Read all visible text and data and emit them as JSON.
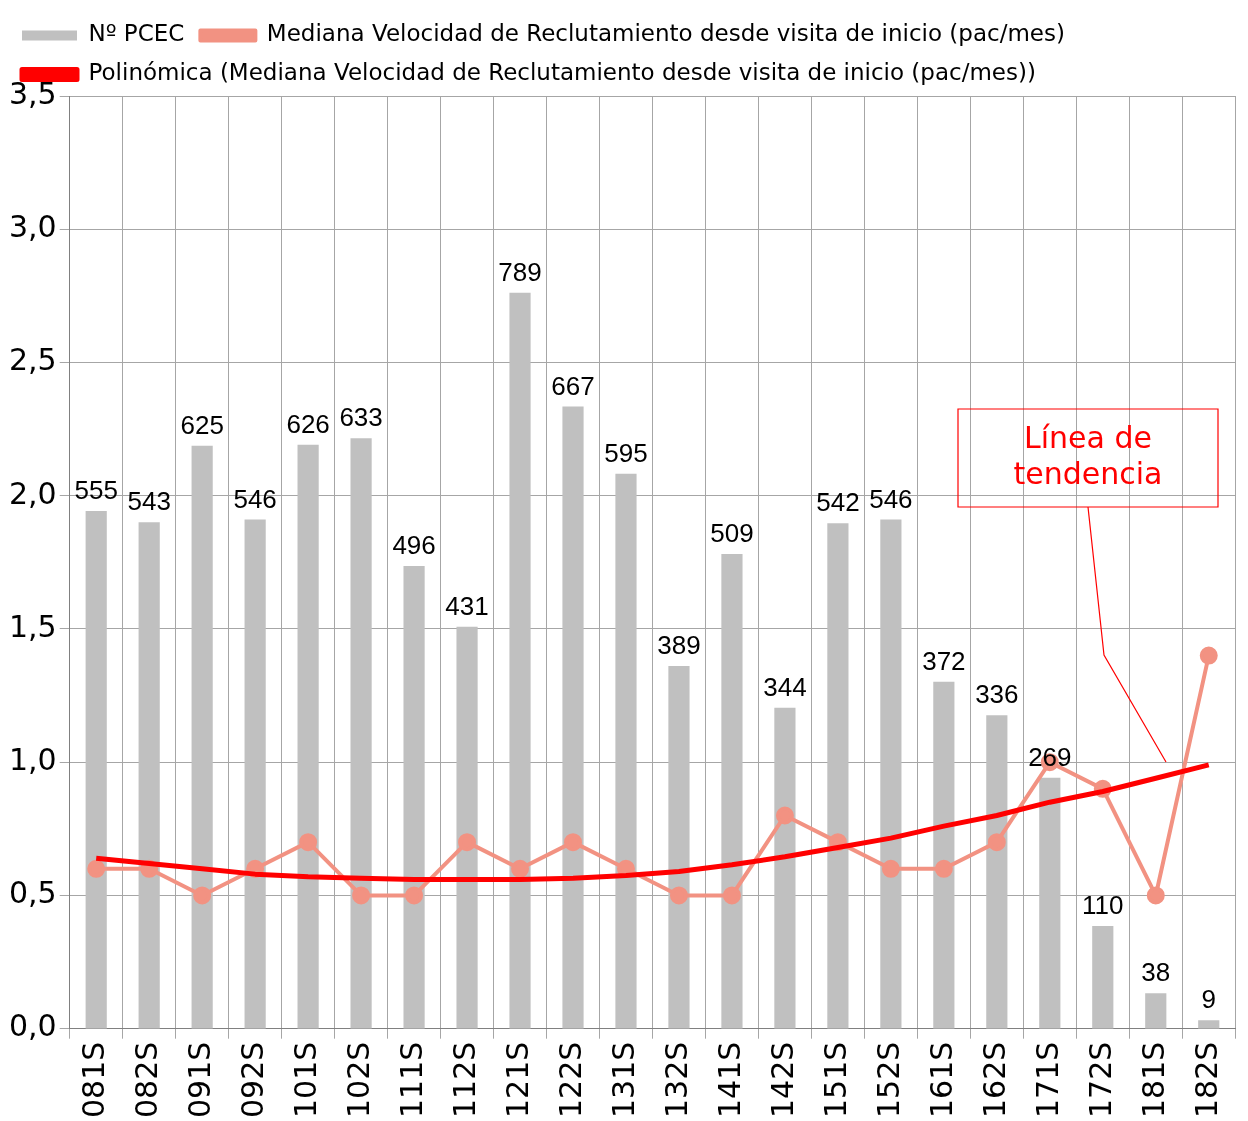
{
  "chart_data": {
    "type": "bar",
    "categories": [
      "081S",
      "082S",
      "091S",
      "092S",
      "101S",
      "102S",
      "111S",
      "112S",
      "121S",
      "122S",
      "131S",
      "132S",
      "141S",
      "142S",
      "151S",
      "152S",
      "161S",
      "162S",
      "171S",
      "172S",
      "181S",
      "182S"
    ],
    "series": [
      {
        "name": "Nº PCEC",
        "axis": "y2",
        "color": "#c0c0c0",
        "data_labels": true,
        "values": [
          555,
          543,
          625,
          546,
          626,
          633,
          496,
          431,
          789,
          667,
          595,
          389,
          509,
          344,
          542,
          546,
          372,
          336,
          269,
          110,
          38,
          9
        ]
      },
      {
        "name": "Mediana Velocidad de Reclutamiento desde visita de inicio (pac/mes)",
        "type": "line",
        "color": "#f29282",
        "marker": "circle",
        "values": [
          0.6,
          0.6,
          0.5,
          0.6,
          0.7,
          0.5,
          0.5,
          0.7,
          0.6,
          0.7,
          0.6,
          0.5,
          0.5,
          0.8,
          0.7,
          0.6,
          0.6,
          0.7,
          1.0,
          0.9,
          0.5,
          1.4
        ]
      },
      {
        "name": "Polinómica (Mediana Velocidad de Reclutamiento desde visita de inicio (pac/mes))",
        "type": "line",
        "color": "#ff0000",
        "marker": "none",
        "values": [
          0.64,
          0.62,
          0.6,
          0.58,
          0.57,
          0.565,
          0.56,
          0.56,
          0.56,
          0.565,
          0.575,
          0.59,
          0.615,
          0.645,
          0.68,
          0.715,
          0.76,
          0.8,
          0.85,
          0.89,
          0.94,
          0.99
        ]
      }
    ],
    "ylim": [
      0,
      3.5
    ],
    "yticks": [
      {
        "value": 0,
        "label": "0,0"
      },
      {
        "value": 0.5,
        "label": "0,5"
      },
      {
        "value": 1,
        "label": "1,0"
      },
      {
        "value": 1.5,
        "label": "1,5"
      },
      {
        "value": 2,
        "label": "2,0"
      },
      {
        "value": 2.5,
        "label": "2,5"
      },
      {
        "value": 3,
        "label": "3,0"
      },
      {
        "value": 3.5,
        "label": "3,5"
      }
    ],
    "y2lim": [
      0,
      1000
    ],
    "grid": true,
    "legend": "top",
    "annotations": [
      "Línea de tendencia"
    ]
  }
}
